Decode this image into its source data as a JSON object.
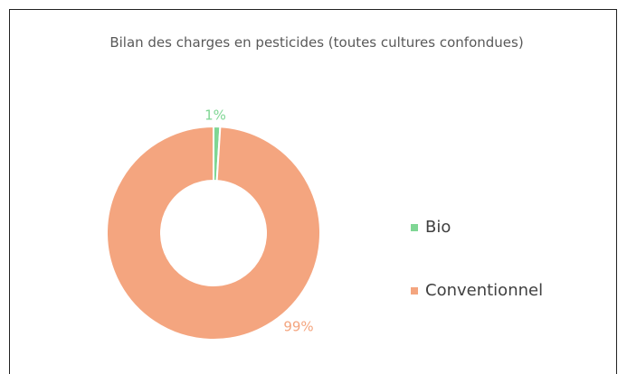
{
  "chart_data": {
    "type": "pie",
    "title": "Bilan des charges en pesticides (toutes cultures confondues)",
    "categories": [
      "Bio",
      "Conventionnel"
    ],
    "values": [
      1,
      99
    ],
    "value_labels": [
      "1%",
      "99%"
    ],
    "colors": [
      "#7fd694",
      "#f4a57f"
    ],
    "donut": true,
    "legend": "right"
  }
}
